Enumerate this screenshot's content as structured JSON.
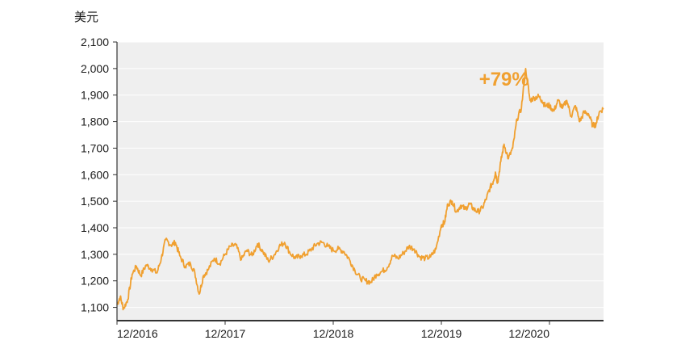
{
  "chart_data": {
    "type": "line",
    "title": "",
    "ylabel": "美元",
    "xlabel": "",
    "ylim": [
      1050,
      2100
    ],
    "xlim": [
      0,
      4.5
    ],
    "grid": true,
    "legend": "none",
    "colors": {
      "line": "#f0a030",
      "annotation": "#f0a030",
      "plot_bg": "#efefef",
      "grid": "#ffffff",
      "axis": "#333333"
    },
    "y_ticks": [
      1100,
      1200,
      1300,
      1400,
      1500,
      1600,
      1700,
      1800,
      1900,
      2000,
      2100
    ],
    "y_tick_labels": [
      "1,100",
      "1,200",
      "1,300",
      "1,400",
      "1,500",
      "1,600",
      "1,700",
      "1,800",
      "1,900",
      "2,000",
      "2,100"
    ],
    "x_ticks": [
      0,
      1,
      2,
      3,
      4
    ],
    "x_tick_labels": [
      "12/2016",
      "12/2017",
      "12/2018",
      "12/2019",
      "12/2020"
    ],
    "annotation": {
      "text": "+79%",
      "x": 3.58,
      "y": 1960
    },
    "series": [
      {
        "x": [
          0,
          0.03,
          0.06,
          0.1,
          0.14,
          0.18,
          0.22,
          0.27,
          0.32,
          0.37,
          0.41,
          0.45,
          0.5,
          0.54,
          0.58,
          0.63,
          0.68,
          0.72,
          0.76,
          0.8,
          0.84,
          0.9,
          0.95,
          1.0,
          1.05,
          1.1,
          1.15,
          1.2,
          1.25,
          1.3,
          1.35,
          1.4,
          1.45,
          1.5,
          1.55,
          1.6,
          1.65,
          1.7,
          1.75,
          1.8,
          1.85,
          1.9,
          1.95,
          2.0,
          2.05,
          2.1,
          2.15,
          2.2,
          2.25,
          2.3,
          2.35,
          2.4,
          2.45,
          2.5,
          2.55,
          2.6,
          2.65,
          2.7,
          2.75,
          2.8,
          2.85,
          2.9,
          2.95,
          3.0,
          3.03,
          3.06,
          3.1,
          3.14,
          3.18,
          3.22,
          3.26,
          3.3,
          3.34,
          3.38,
          3.42,
          3.45,
          3.48,
          3.5,
          3.52,
          3.55,
          3.58,
          3.62,
          3.66,
          3.7,
          3.74,
          3.78,
          3.82,
          3.86,
          3.9,
          3.93,
          3.96,
          4.0,
          4.04,
          4.08,
          4.12,
          4.16,
          4.2,
          4.24,
          4.28,
          4.32,
          4.36,
          4.4,
          4.43,
          4.46,
          4.5
        ],
        "y": [
          1110,
          1140,
          1095,
          1130,
          1225,
          1255,
          1220,
          1260,
          1245,
          1230,
          1285,
          1355,
          1335,
          1345,
          1295,
          1255,
          1265,
          1230,
          1150,
          1220,
          1240,
          1285,
          1265,
          1300,
          1330,
          1335,
          1280,
          1315,
          1295,
          1340,
          1310,
          1275,
          1295,
          1330,
          1345,
          1305,
          1285,
          1295,
          1300,
          1320,
          1340,
          1345,
          1330,
          1315,
          1320,
          1310,
          1280,
          1240,
          1210,
          1200,
          1195,
          1225,
          1235,
          1250,
          1295,
          1285,
          1305,
          1330,
          1320,
          1290,
          1285,
          1290,
          1320,
          1410,
          1420,
          1490,
          1500,
          1460,
          1485,
          1470,
          1490,
          1470,
          1460,
          1475,
          1515,
          1550,
          1575,
          1610,
          1570,
          1650,
          1715,
          1660,
          1700,
          1810,
          1850,
          2000,
          1880,
          1890,
          1895,
          1880,
          1860,
          1860,
          1840,
          1880,
          1850,
          1880,
          1820,
          1860,
          1800,
          1835,
          1830,
          1785,
          1790,
          1835,
          1850
        ]
      }
    ]
  }
}
